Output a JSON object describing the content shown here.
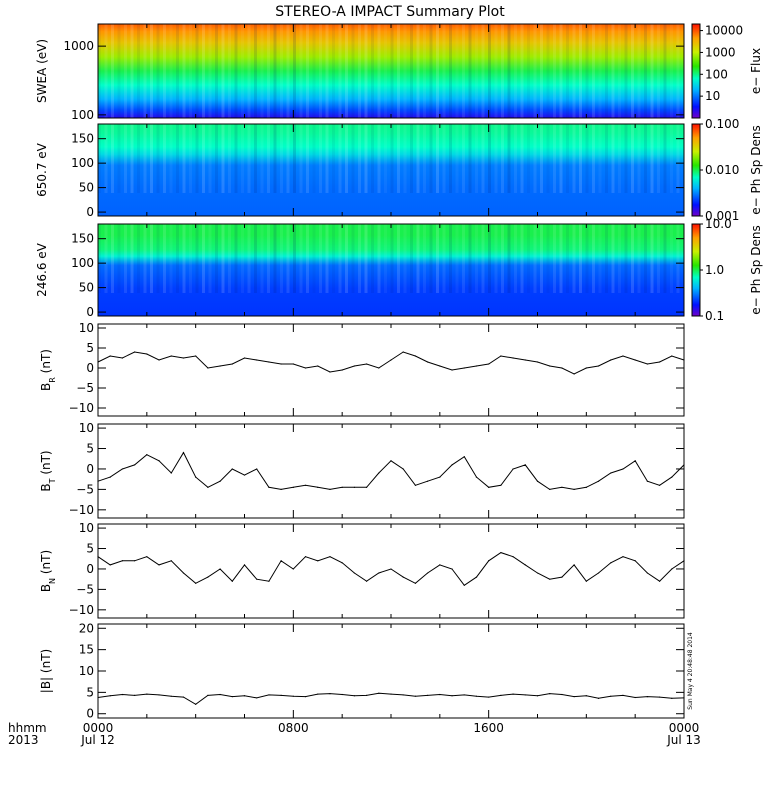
{
  "chart_data": {
    "title": "STEREO-A IMPACT Summary Plot",
    "time_axis": {
      "corner_labels": [
        "hhmm",
        "2013"
      ],
      "ticks": [
        {
          "hour": 0,
          "lines": [
            "0000",
            "Jul 12"
          ]
        },
        {
          "hour": 8,
          "lines": [
            "0800",
            ""
          ]
        },
        {
          "hour": 16,
          "lines": [
            "1600",
            ""
          ]
        },
        {
          "hour": 24,
          "lines": [
            "0000",
            "Jul 13"
          ]
        }
      ],
      "range_hours": [
        0,
        24
      ]
    },
    "timestamp_text": "Sun May  4 20:48:48 2014",
    "panels": [
      {
        "type": "heatmap",
        "ylabel": "SWEA (eV)",
        "yscale": "log",
        "ylim": [
          90,
          2100
        ],
        "yticks": [
          {
            "v": 100,
            "label": "100"
          },
          {
            "v": 1000,
            "label": "1000"
          }
        ],
        "colorbar": {
          "label": "e− Flux",
          "scale": "log",
          "range": [
            1,
            20000
          ],
          "ticks": [
            {
              "v": 10,
              "label": "10"
            },
            {
              "v": 100,
              "label": "100"
            },
            {
              "v": 1000,
              "label": "1000"
            },
            {
              "v": 10000,
              "label": "10000"
            }
          ]
        },
        "profile": [
          [
            0,
            0.92
          ],
          [
            0.08,
            0.86
          ],
          [
            0.2,
            0.78
          ],
          [
            0.35,
            0.66
          ],
          [
            0.5,
            0.5
          ],
          [
            0.65,
            0.42
          ],
          [
            0.8,
            0.3
          ],
          [
            0.92,
            0.18
          ],
          [
            1,
            0.08
          ]
        ]
      },
      {
        "type": "heatmap",
        "ylabel": "650.7 eV",
        "ylim": [
          -8,
          180
        ],
        "yticks": [
          {
            "v": 0,
            "label": "0"
          },
          {
            "v": 50,
            "label": "50"
          },
          {
            "v": 100,
            "label": "100"
          },
          {
            "v": 150,
            "label": "150"
          }
        ],
        "colorbar": {
          "label": "e− Ph Sp Dens",
          "scale": "log",
          "range": [
            0.001,
            0.1
          ],
          "ticks": [
            {
              "v": 0.001,
              "label": "0.001"
            },
            {
              "v": 0.01,
              "label": "0.010"
            },
            {
              "v": 0.1,
              "label": "0.100"
            }
          ]
        },
        "profile": [
          [
            0,
            0.46
          ],
          [
            0.1,
            0.45
          ],
          [
            0.25,
            0.42
          ],
          [
            0.33,
            0.36
          ],
          [
            0.45,
            0.24
          ],
          [
            0.7,
            0.22
          ],
          [
            1,
            0.21
          ]
        ]
      },
      {
        "type": "heatmap",
        "ylabel": "246.6 eV",
        "ylim": [
          -8,
          180
        ],
        "yticks": [
          {
            "v": 0,
            "label": "0"
          },
          {
            "v": 50,
            "label": "50"
          },
          {
            "v": 100,
            "label": "100"
          },
          {
            "v": 150,
            "label": "150"
          }
        ],
        "colorbar": {
          "label": "e− Ph Sp Dens",
          "scale": "log",
          "range": [
            0.1,
            10
          ],
          "ticks": [
            {
              "v": 0.1,
              "label": "0.1"
            },
            {
              "v": 1,
              "label": "1.0"
            },
            {
              "v": 10,
              "label": "10.0"
            }
          ]
        },
        "profile": [
          [
            0,
            0.5
          ],
          [
            0.12,
            0.5
          ],
          [
            0.28,
            0.47
          ],
          [
            0.35,
            0.4
          ],
          [
            0.45,
            0.22
          ],
          [
            0.7,
            0.17
          ],
          [
            1,
            0.16
          ]
        ]
      },
      {
        "type": "line",
        "ylabel_main": "B",
        "ylabel_sub": "R",
        "ylabel_unit": " (nT)",
        "ylim": [
          -12,
          11
        ],
        "yticks": [
          {
            "v": -10,
            "label": "−10"
          },
          {
            "v": -5,
            "label": "−5"
          },
          {
            "v": 0,
            "label": "0"
          },
          {
            "v": 5,
            "label": "5"
          },
          {
            "v": 10,
            "label": "10"
          }
        ],
        "x_hours": [
          0,
          0.5,
          1,
          1.5,
          2,
          2.5,
          3,
          3.5,
          4,
          4.5,
          5,
          5.5,
          6,
          6.5,
          7,
          7.5,
          8,
          8.5,
          9,
          9.5,
          10,
          10.5,
          11,
          11.5,
          12,
          12.5,
          13,
          13.5,
          14,
          14.5,
          15,
          15.5,
          16,
          16.5,
          17,
          17.5,
          18,
          18.5,
          19,
          19.5,
          20,
          20.5,
          21,
          21.5,
          22,
          22.5,
          23,
          23.5,
          24
        ],
        "values": [
          1.5,
          3,
          2.5,
          4,
          3.5,
          2,
          3,
          2.5,
          3,
          0,
          0.5,
          1,
          2.5,
          2,
          1.5,
          1,
          1,
          0,
          0.5,
          -1,
          -0.5,
          0.5,
          1,
          0,
          2,
          4,
          3,
          1.5,
          0.5,
          -0.5,
          0,
          0.5,
          1,
          3,
          2.5,
          2,
          1.5,
          0.5,
          0,
          -1.5,
          0,
          0.5,
          2,
          3,
          2,
          1,
          1.5,
          3,
          2
        ]
      },
      {
        "type": "line",
        "ylabel_main": "B",
        "ylabel_sub": "T",
        "ylabel_unit": " (nT)",
        "ylim": [
          -12,
          11
        ],
        "yticks": [
          {
            "v": -10,
            "label": "−10"
          },
          {
            "v": -5,
            "label": "−5"
          },
          {
            "v": 0,
            "label": "0"
          },
          {
            "v": 5,
            "label": "5"
          },
          {
            "v": 10,
            "label": "10"
          }
        ],
        "x_hours": [
          0,
          0.5,
          1,
          1.5,
          2,
          2.5,
          3,
          3.5,
          4,
          4.5,
          5,
          5.5,
          6,
          6.5,
          7,
          7.5,
          8,
          8.5,
          9,
          9.5,
          10,
          10.5,
          11,
          11.5,
          12,
          12.5,
          13,
          13.5,
          14,
          14.5,
          15,
          15.5,
          16,
          16.5,
          17,
          17.5,
          18,
          18.5,
          19,
          19.5,
          20,
          20.5,
          21,
          21.5,
          22,
          22.5,
          23,
          23.5,
          24
        ],
        "values": [
          -3,
          -2,
          0,
          1,
          3.5,
          2,
          -1,
          4,
          -2,
          -4.5,
          -3,
          0,
          -1.5,
          0,
          -4.5,
          -5,
          -4.5,
          -4,
          -4.5,
          -5,
          -4.5,
          -4.5,
          -4.5,
          -1,
          2,
          0,
          -4,
          -3,
          -2,
          1,
          3,
          -2,
          -4.5,
          -4,
          0,
          1,
          -3,
          -5,
          -4.5,
          -5,
          -4.5,
          -3,
          -1,
          0,
          2,
          -3,
          -4,
          -2,
          1
        ]
      },
      {
        "type": "line",
        "ylabel_main": "B",
        "ylabel_sub": "N",
        "ylabel_unit": " (nT)",
        "ylim": [
          -12,
          11
        ],
        "yticks": [
          {
            "v": -10,
            "label": "−10"
          },
          {
            "v": -5,
            "label": "−5"
          },
          {
            "v": 0,
            "label": "0"
          },
          {
            "v": 5,
            "label": "5"
          },
          {
            "v": 10,
            "label": "10"
          }
        ],
        "x_hours": [
          0,
          0.5,
          1,
          1.5,
          2,
          2.5,
          3,
          3.5,
          4,
          4.5,
          5,
          5.5,
          6,
          6.5,
          7,
          7.5,
          8,
          8.5,
          9,
          9.5,
          10,
          10.5,
          11,
          11.5,
          12,
          12.5,
          13,
          13.5,
          14,
          14.5,
          15,
          15.5,
          16,
          16.5,
          17,
          17.5,
          18,
          18.5,
          19,
          19.5,
          20,
          20.5,
          21,
          21.5,
          22,
          22.5,
          23,
          23.5,
          24
        ],
        "values": [
          3,
          1,
          2,
          2,
          3,
          1,
          2,
          -1,
          -3.5,
          -2,
          0,
          -3,
          1,
          -2.5,
          -3,
          2,
          0,
          3,
          2,
          3,
          1.5,
          -1,
          -3,
          -1,
          0,
          -2,
          -3.5,
          -1,
          1,
          0,
          -4,
          -2,
          2,
          4,
          3,
          1,
          -1,
          -2.5,
          -2,
          1,
          -3,
          -1,
          1.5,
          3,
          2,
          -1,
          -3,
          0,
          2
        ]
      },
      {
        "type": "line",
        "ylabel_main": "|B|",
        "ylabel_sub": "",
        "ylabel_unit": " (nT)",
        "ylim": [
          -1,
          21
        ],
        "yticks": [
          {
            "v": 0,
            "label": "0"
          },
          {
            "v": 5,
            "label": "5"
          },
          {
            "v": 10,
            "label": "10"
          },
          {
            "v": 15,
            "label": "15"
          },
          {
            "v": 20,
            "label": "20"
          }
        ],
        "x_hours": [
          0,
          0.5,
          1,
          1.5,
          2,
          2.5,
          3,
          3.5,
          4,
          4.5,
          5,
          5.5,
          6,
          6.5,
          7,
          7.5,
          8,
          8.5,
          9,
          9.5,
          10,
          10.5,
          11,
          11.5,
          12,
          12.5,
          13,
          13.5,
          14,
          14.5,
          15,
          15.5,
          16,
          16.5,
          17,
          17.5,
          18,
          18.5,
          19,
          19.5,
          20,
          20.5,
          21,
          21.5,
          22,
          22.5,
          23,
          23.5,
          24
        ],
        "values": [
          3.8,
          4.2,
          4.5,
          4.3,
          4.6,
          4.4,
          4.1,
          3.9,
          2.2,
          4.3,
          4.5,
          4.0,
          4.2,
          3.7,
          4.4,
          4.3,
          4.1,
          4.0,
          4.6,
          4.7,
          4.5,
          4.2,
          4.3,
          4.8,
          4.6,
          4.4,
          4.1,
          4.3,
          4.5,
          4.2,
          4.4,
          4.1,
          3.9,
          4.3,
          4.6,
          4.4,
          4.2,
          4.7,
          4.5,
          4.0,
          4.2,
          3.6,
          4.1,
          4.3,
          3.8,
          4.0,
          3.9,
          3.6,
          3.7
        ]
      }
    ]
  }
}
